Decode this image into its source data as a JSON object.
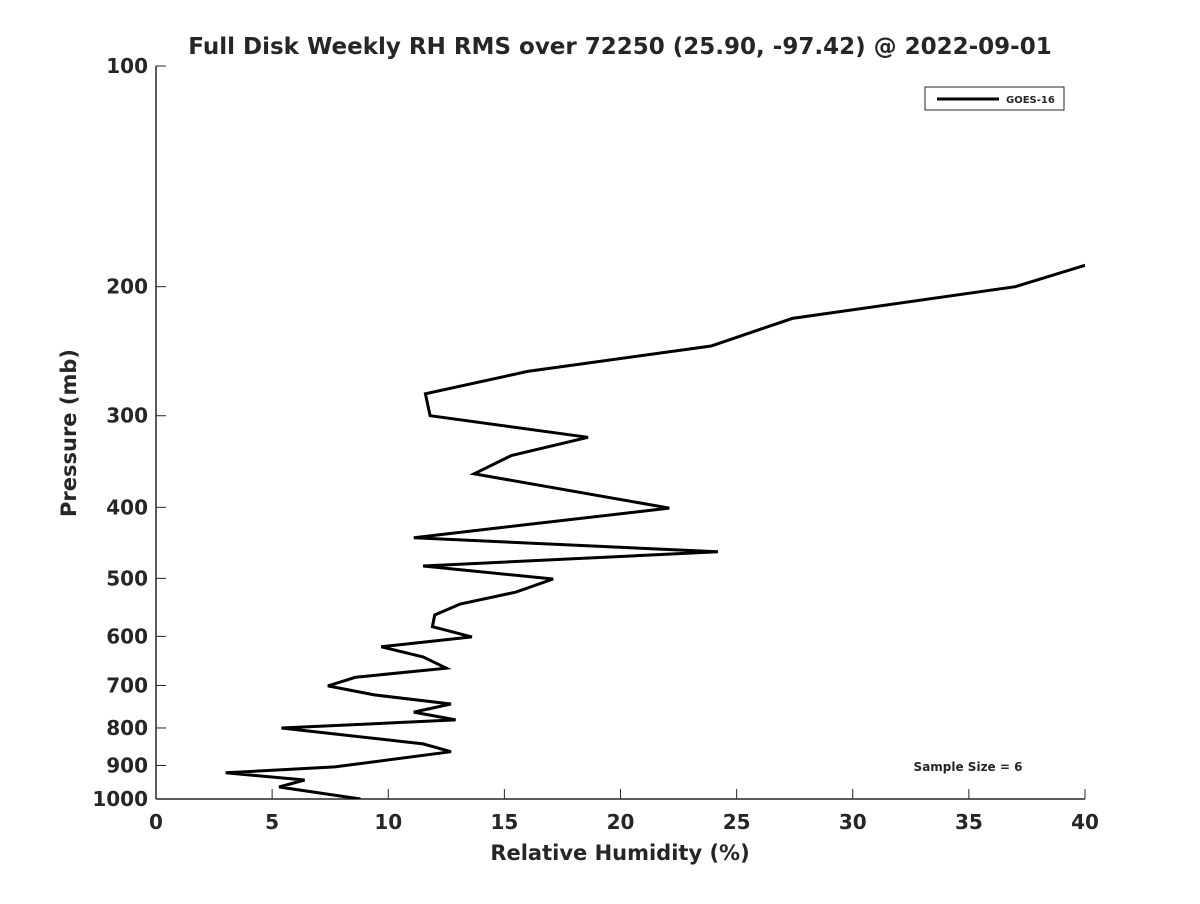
{
  "chart_data": {
    "type": "line",
    "title": "Full Disk Weekly RH RMS over 72250 (25.90, -97.42) @ 2022-09-01",
    "xlabel": "Relative Humidity (%)",
    "ylabel": "Pressure (mb)",
    "xlim": [
      0,
      40
    ],
    "ylim": [
      100,
      1000
    ],
    "yscale": "log",
    "y_reversed": true,
    "xticks": [
      0,
      5,
      10,
      15,
      20,
      25,
      30,
      35,
      40
    ],
    "yticks": [
      100,
      200,
      300,
      400,
      500,
      600,
      700,
      800,
      900,
      1000
    ],
    "grid": false,
    "legend": {
      "position": "top-right",
      "entries": [
        "GOES-16"
      ]
    },
    "annotation": "Sample Size = 6",
    "series": [
      {
        "name": "GOES-16",
        "color": "#000000",
        "x": [
          40.5,
          37.0,
          27.4,
          23.9,
          16.0,
          11.6,
          11.8,
          18.6,
          15.3,
          13.7,
          22.1,
          11.1,
          24.2,
          11.5,
          17.1,
          15.5,
          13.1,
          12.0,
          11.9,
          13.6,
          9.7,
          11.5,
          12.5,
          8.6,
          7.4,
          9.4,
          12.7,
          11.1,
          12.9,
          5.4,
          11.5,
          12.7,
          7.7,
          3.0,
          6.4,
          5.3,
          8.8
        ],
        "y": [
          185,
          200,
          221,
          241,
          261,
          280,
          300,
          321,
          340,
          360,
          401,
          440,
          460,
          481,
          501,
          522,
          542,
          561,
          582,
          601,
          620,
          640,
          663,
          682,
          701,
          721,
          742,
          761,
          780,
          800,
          841,
          862,
          904,
          921,
          942,
          963,
          1000
        ]
      }
    ]
  }
}
